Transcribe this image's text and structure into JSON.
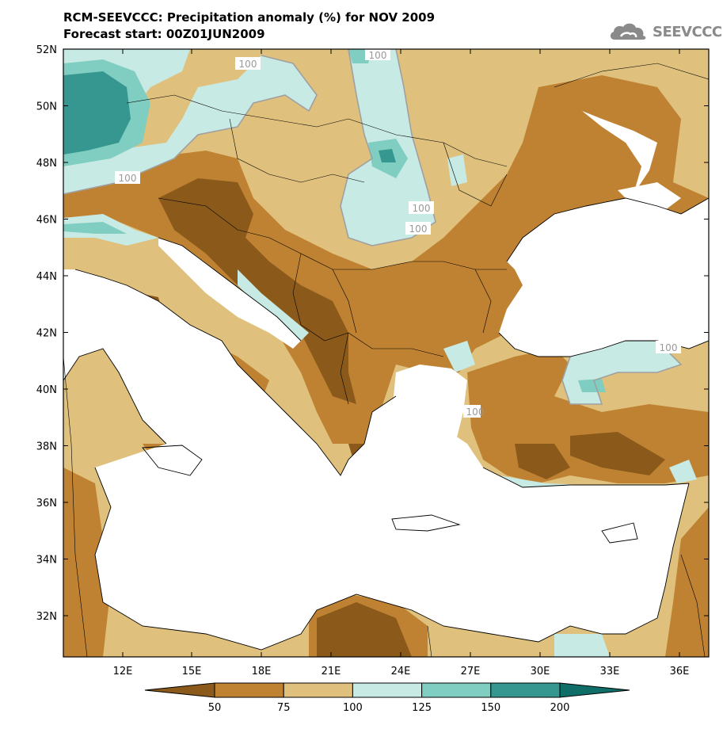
{
  "header": {
    "title": "RCM-SEEVCCC: Precipitation anomaly (%) for NOV 2009",
    "subtitle": "Forecast start: 00Z01JUN2009",
    "logo_text": "SEEVCCC"
  },
  "map": {
    "lat_labels": [
      "52N",
      "50N",
      "48N",
      "46N",
      "44N",
      "42N",
      "40N",
      "38N",
      "36N",
      "34N",
      "32N"
    ],
    "lon_labels": [
      "12E",
      "15E",
      "18E",
      "21E",
      "24E",
      "27E",
      "30E",
      "33E",
      "36E"
    ],
    "contour_labels": [
      "100",
      "100",
      "100",
      "100",
      "100",
      "100",
      "100"
    ]
  },
  "legend": {
    "ticks": [
      "50",
      "75",
      "100",
      "125",
      "150",
      "200"
    ],
    "colors": [
      "#8b5a1b",
      "#bf8232",
      "#dfc17d",
      "#c7eae5",
      "#80cdc1",
      "#35978f",
      "#0f6f68"
    ]
  },
  "colors": {
    "sea": "#ffffff",
    "coast": "#000000",
    "contour_line": "#a0a0a0"
  }
}
